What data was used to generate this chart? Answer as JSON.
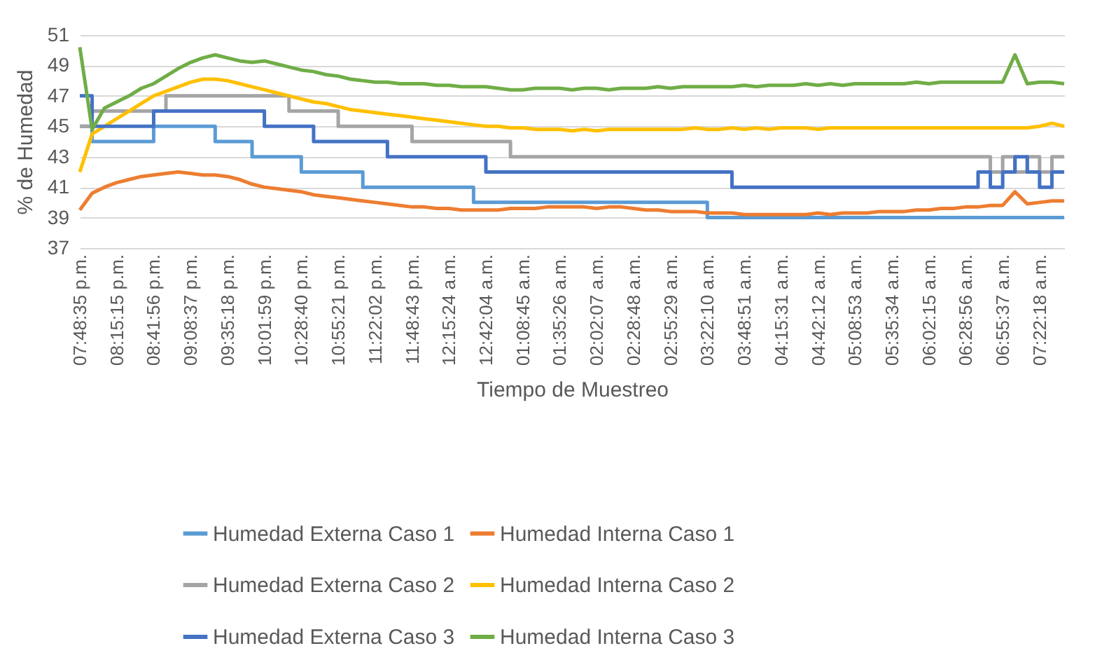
{
  "chart_data": {
    "type": "line",
    "xlabel": "Tiempo de Muestreo",
    "ylabel": "% de Humedad",
    "ylim": [
      37,
      51
    ],
    "yticks": [
      37,
      39,
      41,
      43,
      45,
      47,
      49,
      51
    ],
    "grid": "y",
    "legend": "bottom",
    "marker": "none",
    "categories": [
      "07:48:35 p.m.",
      null,
      null,
      "08:15:15 p.m.",
      null,
      null,
      "08:41:56 p.m.",
      null,
      null,
      "09:08:37 p.m.",
      null,
      null,
      "09:35:18 p.m.",
      null,
      null,
      "10:01:59 p.m.",
      null,
      null,
      "10:28:40 p.m.",
      null,
      null,
      "10:55:21 p.m.",
      null,
      null,
      "11:22:02 p.m.",
      null,
      null,
      "11:48:43 p.m.",
      null,
      null,
      "12:15:24 a.m.",
      null,
      null,
      "12:42:04 a.m.",
      null,
      null,
      "01:08:45 a.m.",
      null,
      null,
      "01:35:26 a.m.",
      null,
      null,
      "02:02:07 a.m.",
      null,
      null,
      "02:28:48 a.m.",
      null,
      null,
      "02:55:29 a.m.",
      null,
      null,
      "03:22:10 a.m.",
      null,
      null,
      "03:48:51 a.m.",
      null,
      null,
      "04:15:31 a.m.",
      null,
      null,
      "04:42:12 a.m.",
      null,
      null,
      "05:08:53 a.m.",
      null,
      null,
      "05:35:34 a.m.",
      null,
      null,
      "06:02:15 a.m.",
      null,
      null,
      "06:28:56 a.m.",
      null,
      null,
      "06:55:37 a.m.",
      null,
      null,
      "07:22:18 a.m.",
      null,
      null
    ],
    "series": [
      {
        "name": "Humedad Externa Caso 1",
        "type": "step",
        "color": "#5b9bd5",
        "values": [
          45,
          44,
          44,
          44,
          44,
          44,
          45,
          45,
          45,
          45,
          45,
          44,
          44,
          44,
          43,
          43,
          43,
          43,
          42,
          42,
          42,
          42,
          42,
          41,
          41,
          41,
          41,
          41,
          41,
          41,
          41,
          41,
          40,
          40,
          40,
          40,
          40,
          40,
          40,
          40,
          40,
          40,
          40,
          40,
          40,
          40,
          40,
          40,
          40,
          40,
          40,
          39,
          39,
          39,
          39,
          39,
          39,
          39,
          39,
          39,
          39,
          39,
          39,
          39,
          39,
          39,
          39,
          39,
          39,
          39,
          39,
          39,
          39,
          39,
          39,
          39,
          39,
          39,
          39,
          39,
          39
        ]
      },
      {
        "name": "Humedad Interna Caso 1",
        "type": "line",
        "color": "#ed7d31",
        "values": [
          39.5,
          40.6,
          41,
          41.3,
          41.5,
          41.7,
          41.8,
          41.9,
          42,
          41.9,
          41.8,
          41.8,
          41.7,
          41.5,
          41.2,
          41,
          40.9,
          40.8,
          40.7,
          40.5,
          40.4,
          40.3,
          40.2,
          40.1,
          40,
          39.9,
          39.8,
          39.7,
          39.7,
          39.6,
          39.6,
          39.5,
          39.5,
          39.5,
          39.5,
          39.6,
          39.6,
          39.6,
          39.7,
          39.7,
          39.7,
          39.7,
          39.6,
          39.7,
          39.7,
          39.6,
          39.5,
          39.5,
          39.4,
          39.4,
          39.4,
          39.3,
          39.3,
          39.3,
          39.2,
          39.2,
          39.2,
          39.2,
          39.2,
          39.2,
          39.3,
          39.2,
          39.3,
          39.3,
          39.3,
          39.4,
          39.4,
          39.4,
          39.5,
          39.5,
          39.6,
          39.6,
          39.7,
          39.7,
          39.8,
          39.8,
          40.7,
          39.9,
          40,
          40.1,
          40.1
        ]
      },
      {
        "name": "Humedad Externa Caso 2",
        "type": "step",
        "color": "#a5a5a5",
        "values": [
          45,
          46,
          46,
          46,
          46,
          46,
          46,
          47,
          47,
          47,
          47,
          47,
          47,
          47,
          47,
          47,
          47,
          46,
          46,
          46,
          46,
          45,
          45,
          45,
          45,
          45,
          45,
          44,
          44,
          44,
          44,
          44,
          44,
          44,
          44,
          43,
          43,
          43,
          43,
          43,
          43,
          43,
          43,
          43,
          43,
          43,
          43,
          43,
          43,
          43,
          43,
          43,
          43,
          43,
          43,
          43,
          43,
          43,
          43,
          43,
          43,
          43,
          43,
          43,
          43,
          43,
          43,
          43,
          43,
          43,
          43,
          43,
          43,
          43,
          42,
          43,
          42,
          43,
          42,
          43,
          43
        ]
      },
      {
        "name": "Humedad Interna Caso 2",
        "type": "line",
        "color": "#ffc000",
        "values": [
          42,
          44.5,
          45,
          45.5,
          46,
          46.5,
          47,
          47.3,
          47.6,
          47.9,
          48.1,
          48.1,
          48,
          47.8,
          47.6,
          47.4,
          47.2,
          47,
          46.8,
          46.6,
          46.5,
          46.3,
          46.1,
          46,
          45.9,
          45.8,
          45.7,
          45.6,
          45.5,
          45.4,
          45.3,
          45.2,
          45.1,
          45,
          45,
          44.9,
          44.9,
          44.8,
          44.8,
          44.8,
          44.7,
          44.8,
          44.7,
          44.8,
          44.8,
          44.8,
          44.8,
          44.8,
          44.8,
          44.8,
          44.9,
          44.8,
          44.8,
          44.9,
          44.8,
          44.9,
          44.8,
          44.9,
          44.9,
          44.9,
          44.8,
          44.9,
          44.9,
          44.9,
          44.9,
          44.9,
          44.9,
          44.9,
          44.9,
          44.9,
          44.9,
          44.9,
          44.9,
          44.9,
          44.9,
          44.9,
          44.9,
          44.9,
          45,
          45.2,
          45
        ]
      },
      {
        "name": "Humedad Externa Caso 3",
        "type": "step",
        "color": "#4472c4",
        "values": [
          47,
          45,
          45,
          45,
          45,
          45,
          46,
          46,
          46,
          46,
          46,
          46,
          46,
          46,
          46,
          45,
          45,
          45,
          45,
          44,
          44,
          44,
          44,
          44,
          44,
          43,
          43,
          43,
          43,
          43,
          43,
          43,
          43,
          42,
          42,
          42,
          42,
          42,
          42,
          42,
          42,
          42,
          42,
          42,
          42,
          42,
          42,
          42,
          42,
          42,
          42,
          42,
          42,
          41,
          41,
          41,
          41,
          41,
          41,
          41,
          41,
          41,
          41,
          41,
          41,
          41,
          41,
          41,
          41,
          41,
          41,
          41,
          41,
          42,
          41,
          42,
          43,
          42,
          41,
          42,
          42
        ]
      },
      {
        "name": "Humedad Interna Caso 3",
        "type": "line",
        "color": "#70ad47",
        "values": [
          50.2,
          44.8,
          46.2,
          46.6,
          47,
          47.5,
          47.8,
          48.3,
          48.8,
          49.2,
          49.5,
          49.7,
          49.5,
          49.3,
          49.2,
          49.3,
          49.1,
          48.9,
          48.7,
          48.6,
          48.4,
          48.3,
          48.1,
          48,
          47.9,
          47.9,
          47.8,
          47.8,
          47.8,
          47.7,
          47.7,
          47.6,
          47.6,
          47.6,
          47.5,
          47.4,
          47.4,
          47.5,
          47.5,
          47.5,
          47.4,
          47.5,
          47.5,
          47.4,
          47.5,
          47.5,
          47.5,
          47.6,
          47.5,
          47.6,
          47.6,
          47.6,
          47.6,
          47.6,
          47.7,
          47.6,
          47.7,
          47.7,
          47.7,
          47.8,
          47.7,
          47.8,
          47.7,
          47.8,
          47.8,
          47.8,
          47.8,
          47.8,
          47.9,
          47.8,
          47.9,
          47.9,
          47.9,
          47.9,
          47.9,
          47.9,
          49.7,
          47.8,
          47.9,
          47.9,
          47.8
        ]
      }
    ]
  }
}
